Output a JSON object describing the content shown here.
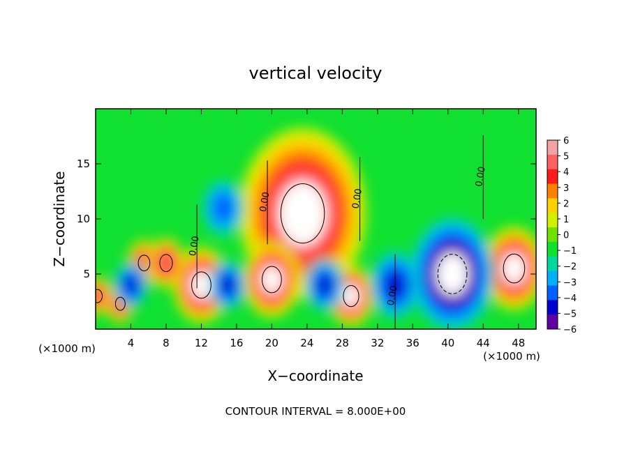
{
  "chart_data": {
    "type": "heatmap",
    "title": "vertical velocity",
    "xlabel": "X−coordinate",
    "ylabel": "Z−coordinate",
    "x_unit_left": "(×1000 m)",
    "x_unit_right": "(×1000 m)",
    "footer": "CONTOUR INTERVAL = 8.000E+00",
    "xlim": [
      0,
      50
    ],
    "ylim": [
      0,
      20
    ],
    "x_ticks": [
      4,
      8,
      12,
      16,
      20,
      24,
      28,
      32,
      36,
      40,
      44,
      48
    ],
    "y_ticks": [
      5,
      10,
      15
    ],
    "contour_labels": [
      "0.00",
      "0.00",
      "0.00",
      "0.00",
      "0.00"
    ],
    "colorbar": {
      "ticks": [
        "6",
        "5",
        "4",
        "3",
        "2",
        "1",
        "0",
        "−1",
        "−2",
        "−3",
        "−4",
        "−5",
        "−6"
      ],
      "colors": [
        "#f4a3a3",
        "#ff5f5f",
        "#ff1a1a",
        "#ff7f00",
        "#ffd000",
        "#d0f000",
        "#6fe000",
        "#10e030",
        "#00d8a0",
        "#00b0ff",
        "#0060ff",
        "#0000d0",
        "#6000a0"
      ]
    },
    "features": [
      {
        "x": 23.5,
        "z": 10.5,
        "w": 4.5,
        "sign": "positive",
        "peak": 6
      },
      {
        "x": 20,
        "z": 4.5,
        "w": 2.0,
        "sign": "positive",
        "peak": 6
      },
      {
        "x": 12,
        "z": 4,
        "w": 2.0,
        "sign": "positive",
        "peak": 6
      },
      {
        "x": 29,
        "z": 3,
        "w": 1.6,
        "sign": "positive",
        "peak": 6
      },
      {
        "x": 47.5,
        "z": 5.5,
        "w": 2.2,
        "sign": "positive",
        "peak": 6
      },
      {
        "x": 5.5,
        "z": 6,
        "w": 1.2,
        "sign": "positive",
        "peak": 5
      },
      {
        "x": 8,
        "z": 6,
        "w": 1.3,
        "sign": "positive",
        "peak": 5
      },
      {
        "x": 2.8,
        "z": 2.3,
        "w": 1.0,
        "sign": "positive",
        "peak": 5
      },
      {
        "x": 0.2,
        "z": 3,
        "w": 1.0,
        "sign": "positive",
        "peak": 5
      },
      {
        "x": 40.5,
        "z": 5,
        "w": 3.0,
        "sign": "negative",
        "peak": -6
      },
      {
        "x": 14.5,
        "z": 11,
        "w": 1.5,
        "sign": "negative",
        "peak": -3
      },
      {
        "x": 15,
        "z": 4,
        "w": 1.3,
        "sign": "negative",
        "peak": -4
      },
      {
        "x": 26,
        "z": 4,
        "w": 1.4,
        "sign": "negative",
        "peak": -4
      },
      {
        "x": 34,
        "z": 4,
        "w": 1.8,
        "sign": "negative",
        "peak": -4
      },
      {
        "x": 4,
        "z": 4,
        "w": 1.2,
        "sign": "negative",
        "peak": -4
      }
    ]
  }
}
